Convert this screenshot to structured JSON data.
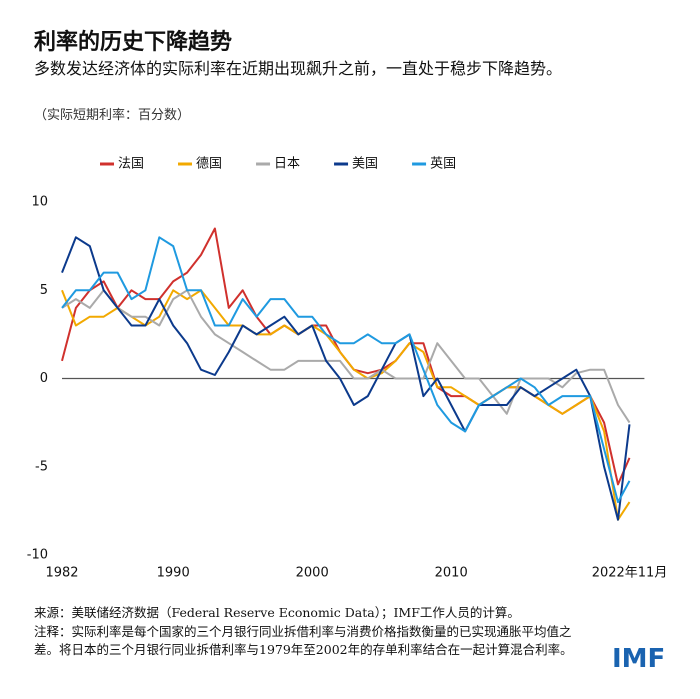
{
  "chart_data": {
    "type": "line",
    "title": "利率的历史下降趋势",
    "subtitle": "多数发达经济体的实际利率在近期出现飙升之前，一直处于稳步下降趋势。",
    "unit_note": "（实际短期利率：百分数）",
    "source": "来源：美联储经济数据（Federal Reserve Economic Data）；IMF工作人员的计算。",
    "note": "注释：实际利率是每个国家的三个月银行同业拆借利率与消费价格指数衡量的已实现通胀平均值之差。将日本的三个月银行同业拆借利率与1979年至2002年的存单利率结合在一起计算混合利率。",
    "logo": "IMF",
    "x": [
      1982,
      1983,
      1984,
      1985,
      1986,
      1987,
      1988,
      1989,
      1990,
      1991,
      1992,
      1993,
      1994,
      1995,
      1996,
      1997,
      1998,
      1999,
      2000,
      2001,
      2002,
      2003,
      2004,
      2005,
      2006,
      2007,
      2008,
      2009,
      2010,
      2011,
      2012,
      2013,
      2014,
      2015,
      2016,
      2017,
      2018,
      2019,
      2020,
      2021,
      2022,
      2022.83
    ],
    "xlim": [
      1982,
      2023.9
    ],
    "xticks": [
      1982,
      1990,
      2000,
      2010,
      {
        "value": 2022.83,
        "label": "2022年11月"
      }
    ],
    "ylim": [
      -10,
      10
    ],
    "yticks": [
      10,
      5,
      0,
      -5,
      -10
    ],
    "zero_line": true,
    "legend": "top",
    "series": [
      {
        "name": "法国",
        "color": "#d0312d",
        "values": [
          1,
          4,
          5,
          5.5,
          4,
          5,
          4.5,
          4.5,
          5.5,
          6,
          7,
          8.5,
          4,
          5,
          3.5,
          2.5,
          3,
          2.5,
          3,
          3,
          1.5,
          0.5,
          0.3,
          0.5,
          1,
          2,
          2,
          -0.5,
          -1,
          -1,
          -1.5,
          -1,
          -0.5,
          -0.5,
          -1,
          -1.5,
          -2,
          -1.5,
          -1,
          -2.5,
          -6,
          -4.5
        ]
      },
      {
        "name": "德国",
        "color": "#f2a900",
        "values": [
          5,
          3,
          3.5,
          3.5,
          4,
          3.5,
          3,
          3.5,
          5,
          4.5,
          5,
          4,
          3,
          3,
          2.5,
          2.5,
          3,
          2.5,
          3,
          2.5,
          1.5,
          0.5,
          0,
          0.3,
          1,
          2,
          1.5,
          -0.5,
          -0.5,
          -1,
          -1.5,
          -1,
          -0.5,
          -0.5,
          -1,
          -1.5,
          -2,
          -1.5,
          -1,
          -3,
          -8,
          -7
        ]
      },
      {
        "name": "日本",
        "color": "#aaaaaa",
        "values": [
          4,
          4.5,
          4,
          5,
          4,
          3.5,
          3.5,
          3,
          4.5,
          5,
          3.5,
          2.5,
          2,
          1.5,
          1,
          0.5,
          0.5,
          1,
          1,
          1,
          1,
          0,
          0,
          0.5,
          0,
          0,
          0,
          2,
          1,
          0,
          0,
          -1,
          -2,
          0,
          0,
          0,
          -0.5,
          0.3,
          0.5,
          0.5,
          -1.5,
          -2.5
        ]
      },
      {
        "name": "美国",
        "color": "#0c3a8c",
        "values": [
          6,
          8,
          7.5,
          5,
          4,
          3,
          3,
          4.5,
          3,
          2,
          0.5,
          0.2,
          1.5,
          3,
          2.5,
          3,
          3.5,
          2.5,
          3,
          1,
          0,
          -1.5,
          -1,
          0.5,
          2,
          2.5,
          -1,
          0,
          -1.5,
          -3,
          -1.5,
          -1.5,
          -1.5,
          -0.5,
          -1,
          -0.5,
          0,
          0.5,
          -1,
          -5,
          -8,
          -2.6
        ]
      },
      {
        "name": "英国",
        "color": "#1f9ae0",
        "values": [
          4,
          5,
          5,
          6,
          6,
          4.5,
          5,
          8,
          7.5,
          5,
          5,
          3,
          3,
          4.5,
          3.5,
          4.5,
          4.5,
          3.5,
          3.5,
          2.5,
          2,
          2,
          2.5,
          2,
          2,
          2.5,
          0.5,
          -1.5,
          -2.5,
          -3,
          -1.5,
          -1,
          -0.5,
          0,
          -0.5,
          -1.5,
          -1,
          -1,
          -1,
          -4,
          -7,
          -5.8
        ]
      }
    ]
  }
}
